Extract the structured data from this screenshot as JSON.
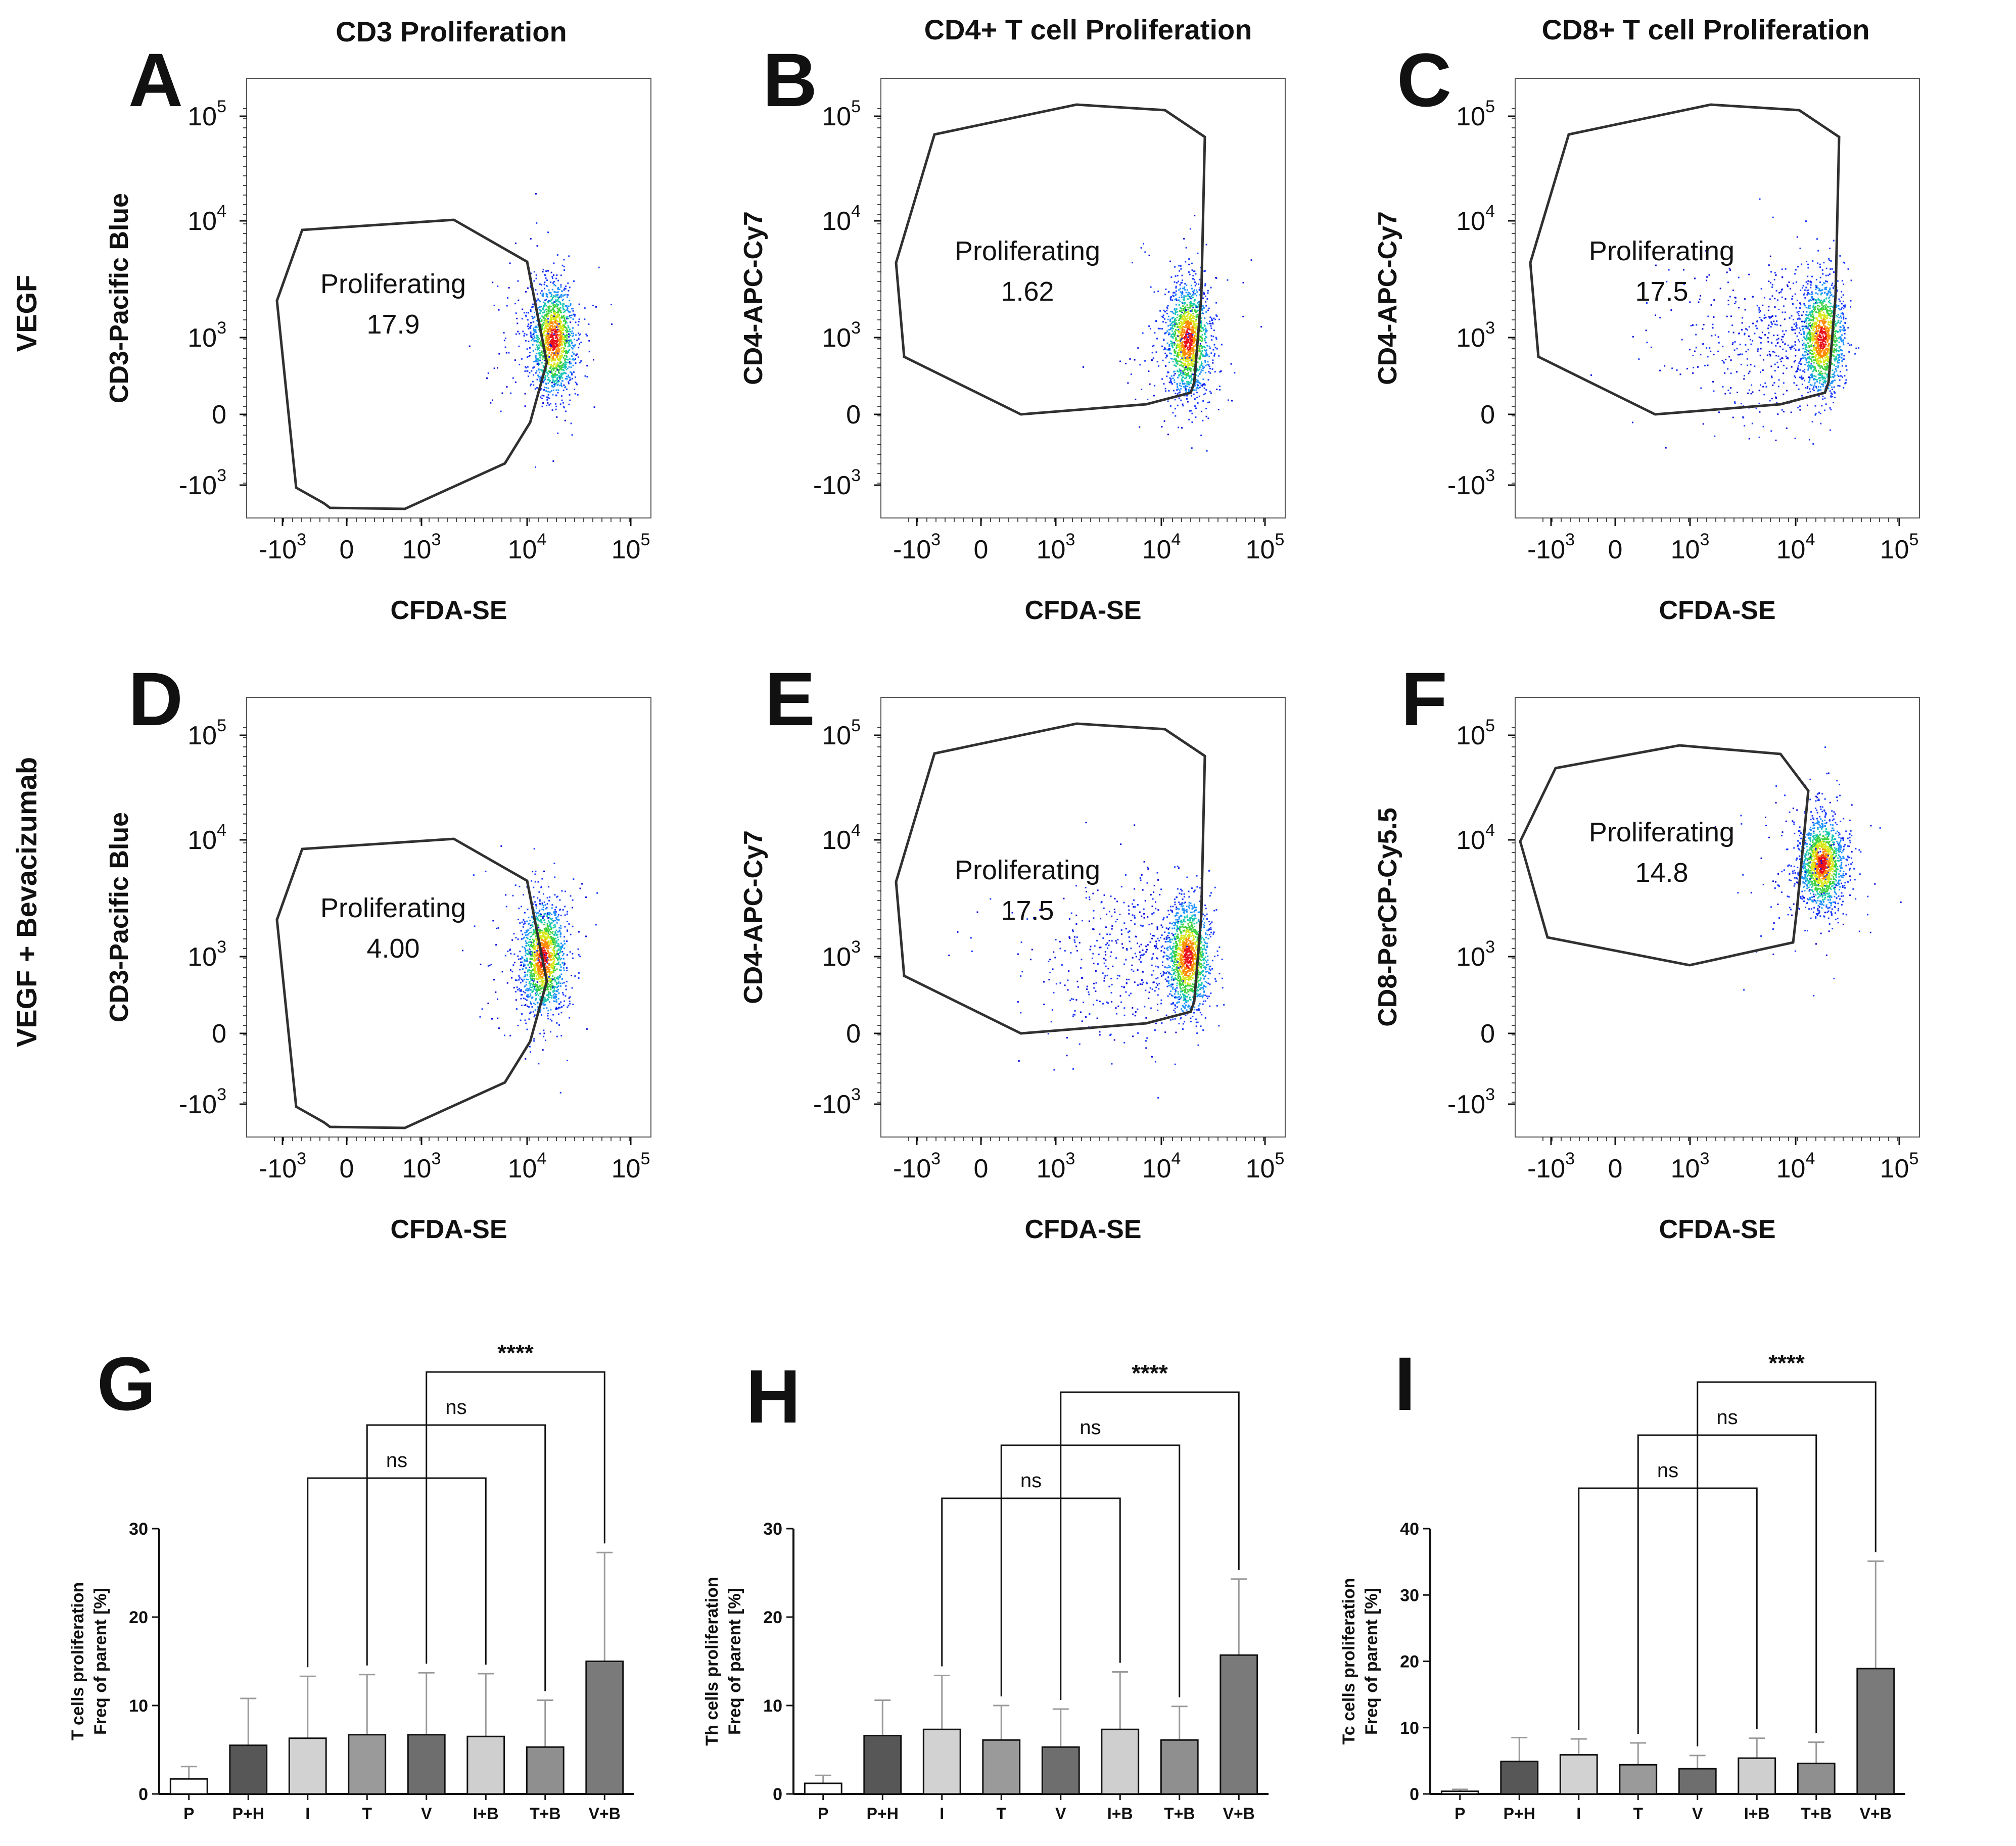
{
  "column_titles": [
    "CD3 Proliferation",
    "CD4+ T cell  Proliferation",
    "CD8+ T cell  Proliferation"
  ],
  "row_labels": [
    "VEGF",
    "VEGF + Bevacizumab"
  ],
  "flow_axes": {
    "x_label": "CFDA-SE",
    "x_ticks": [
      {
        "base": "-10",
        "exp": "3"
      },
      {
        "base": "0",
        "exp": ""
      },
      {
        "base": "10",
        "exp": "3"
      },
      {
        "base": "10",
        "exp": "4"
      },
      {
        "base": "10",
        "exp": "5"
      }
    ],
    "y_ticks": [
      {
        "base": "-10",
        "exp": "3"
      },
      {
        "base": "0",
        "exp": ""
      },
      {
        "base": "10",
        "exp": "3"
      },
      {
        "base": "10",
        "exp": "4"
      },
      {
        "base": "10",
        "exp": "5"
      }
    ]
  },
  "colors": {
    "density": [
      "#0a0ad8",
      "#1b3bff",
      "#1e90ff",
      "#19c8b0",
      "#3fd13f",
      "#d7e81a",
      "#ff8a00",
      "#e8101a"
    ],
    "bars": [
      "#ffffff",
      "#575757",
      "#d2d2d2",
      "#9a9a9a",
      "#6e6e6e",
      "#cfcfcf",
      "#8f8f8f",
      "#7a7a7a"
    ],
    "error_bar": "#9a9a9a",
    "gate": "#303030"
  },
  "chart_data": [
    {
      "panel": "A",
      "type": "scatter",
      "title": "CD3 Proliferation",
      "row": "VEGF",
      "xlabel": "CFDA-SE",
      "ylabel": "CD3-Pacific Blue",
      "gate_label": "Proliferating",
      "gate_value": "17.9",
      "cluster": {
        "x_log": 4.25,
        "y_log": 2.95
      },
      "spread": "narrow"
    },
    {
      "panel": "B",
      "type": "scatter",
      "title": "CD4+ T cell  Proliferation",
      "row": "VEGF",
      "xlabel": "CFDA-SE",
      "ylabel": "CD4-APC-Cy7",
      "gate_label": "Proliferating",
      "gate_value": "1.62",
      "cluster": {
        "x_log": 4.25,
        "y_log": 2.95
      },
      "spread": "narrow"
    },
    {
      "panel": "C",
      "type": "scatter",
      "title": "CD8+ T cell  Proliferation",
      "row": "VEGF",
      "xlabel": "CFDA-SE",
      "ylabel": "CD4-APC-Cy7",
      "gate_label": "Proliferating",
      "gate_value": "17.5",
      "cluster": {
        "x_log": 4.25,
        "y_log": 3.0
      },
      "spread": "wide"
    },
    {
      "panel": "D",
      "type": "scatter",
      "row": "VEGF + Bevacizumab",
      "xlabel": "CFDA-SE",
      "ylabel": "CD3-Pacific Blue",
      "gate_label": "Proliferating",
      "gate_value": "4.00",
      "cluster": {
        "x_log": 4.15,
        "y_log": 2.95
      },
      "spread": "narrow"
    },
    {
      "panel": "E",
      "type": "scatter",
      "row": "VEGF + Bevacizumab",
      "xlabel": "CFDA-SE",
      "ylabel": "CD4-APC-Cy7",
      "gate_label": "Proliferating",
      "gate_value": "17.5",
      "cluster": {
        "x_log": 4.25,
        "y_log": 3.0
      },
      "spread": "wide"
    },
    {
      "panel": "F",
      "type": "scatter",
      "row": "VEGF + Bevacizumab",
      "xlabel": "CFDA-SE",
      "ylabel": "CD8-PerCP-Cy5.5",
      "gate_label": "Proliferating",
      "gate_value": "14.8",
      "cluster": {
        "x_log": 4.25,
        "y_log": 3.8
      },
      "spread": "medium"
    },
    {
      "panel": "G",
      "type": "bar",
      "ylabel": "T cells proliferation\nFreq of parent [%]",
      "categories": [
        "P",
        "P+H",
        "I",
        "T",
        "V",
        "I+B",
        "T+B",
        "V+B"
      ],
      "values": [
        1.7,
        5.5,
        6.3,
        6.7,
        6.7,
        6.5,
        5.3,
        15.0
      ],
      "errors": [
        1.4,
        5.3,
        7.0,
        6.8,
        7.0,
        7.1,
        5.3,
        12.3
      ],
      "ylim": [
        0,
        30
      ],
      "yticks": [
        0,
        10,
        20,
        30
      ],
      "comparisons": [
        {
          "from": 2,
          "to": 5,
          "label": "ns"
        },
        {
          "from": 3,
          "to": 6,
          "label": "ns"
        },
        {
          "from": 4,
          "to": 7,
          "label": "****"
        }
      ]
    },
    {
      "panel": "H",
      "type": "bar",
      "ylabel": "Th cells proliferation\nFreq of parent [%]",
      "categories": [
        "P",
        "P+H",
        "I",
        "T",
        "V",
        "I+B",
        "T+B",
        "V+B"
      ],
      "values": [
        1.2,
        6.6,
        7.3,
        6.1,
        5.3,
        7.3,
        6.1,
        15.7
      ],
      "errors": [
        0.9,
        4.0,
        6.1,
        3.9,
        4.3,
        6.5,
        3.8,
        8.6
      ],
      "ylim": [
        0,
        30
      ],
      "yticks": [
        0,
        10,
        20,
        30
      ],
      "comparisons": [
        {
          "from": 2,
          "to": 5,
          "label": "ns"
        },
        {
          "from": 3,
          "to": 6,
          "label": "ns"
        },
        {
          "from": 4,
          "to": 7,
          "label": "****"
        }
      ]
    },
    {
      "panel": "I",
      "type": "bar",
      "ylabel": "Tc cells proliferation\nFreq of parent [%]",
      "categories": [
        "P",
        "P+H",
        "I",
        "T",
        "V",
        "I+B",
        "T+B",
        "V+B"
      ],
      "values": [
        0.4,
        4.9,
        5.9,
        4.4,
        3.8,
        5.4,
        4.6,
        18.9
      ],
      "errors": [
        0.3,
        3.6,
        2.4,
        3.3,
        2.0,
        3.0,
        3.2,
        16.2
      ],
      "ylim": [
        0,
        40
      ],
      "yticks": [
        0,
        10,
        20,
        30,
        40
      ],
      "comparisons": [
        {
          "from": 2,
          "to": 5,
          "label": "ns"
        },
        {
          "from": 3,
          "to": 6,
          "label": "ns"
        },
        {
          "from": 4,
          "to": 7,
          "label": "****"
        }
      ]
    }
  ]
}
